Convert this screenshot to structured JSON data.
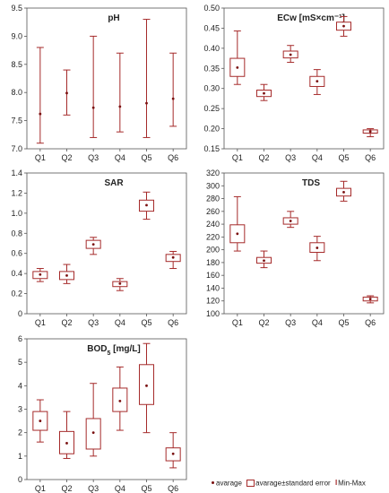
{
  "chart_data": [
    {
      "type": "box",
      "title": "pH",
      "categories": [
        "Q1",
        "Q2",
        "Q3",
        "Q4",
        "Q5",
        "Q6"
      ],
      "mean": [
        7.62,
        7.99,
        7.73,
        7.75,
        7.81,
        7.89
      ],
      "se_low": [
        7.62,
        7.99,
        7.73,
        7.75,
        7.81,
        7.89
      ],
      "se_high": [
        7.62,
        7.99,
        7.73,
        7.75,
        7.81,
        7.89
      ],
      "min": [
        7.1,
        7.6,
        7.2,
        7.3,
        7.2,
        7.4
      ],
      "max": [
        8.8,
        8.4,
        9.0,
        8.7,
        9.3,
        8.7
      ],
      "ylim": [
        7.0,
        9.5
      ],
      "yticks": [
        "7.0",
        "7.5",
        "8.0",
        "8.5",
        "9.0",
        "9.5"
      ]
    },
    {
      "type": "box",
      "title": "ECw [mS×cm⁻¹]",
      "categories": [
        "Q1",
        "Q2",
        "Q3",
        "Q4",
        "Q5",
        "Q6"
      ],
      "mean": [
        0.352,
        0.288,
        0.384,
        0.318,
        0.455,
        0.193
      ],
      "se_low": [
        0.33,
        0.28,
        0.376,
        0.305,
        0.445,
        0.189
      ],
      "se_high": [
        0.375,
        0.296,
        0.393,
        0.33,
        0.465,
        0.197
      ],
      "min": [
        0.31,
        0.27,
        0.365,
        0.285,
        0.43,
        0.18
      ],
      "max": [
        0.443,
        0.31,
        0.407,
        0.347,
        0.479,
        0.2
      ],
      "ylim": [
        0.15,
        0.5
      ],
      "yticks": [
        "0.15",
        "0.20",
        "0.25",
        "0.30",
        "0.35",
        "0.40",
        "0.45",
        "0.50"
      ]
    },
    {
      "type": "box",
      "title": "SAR",
      "categories": [
        "Q1",
        "Q2",
        "Q3",
        "Q4",
        "Q5",
        "Q6"
      ],
      "mean": [
        0.39,
        0.38,
        0.69,
        0.3,
        1.08,
        0.56
      ],
      "se_low": [
        0.35,
        0.34,
        0.65,
        0.27,
        1.02,
        0.52
      ],
      "se_high": [
        0.42,
        0.42,
        0.73,
        0.32,
        1.13,
        0.59
      ],
      "min": [
        0.32,
        0.3,
        0.59,
        0.23,
        0.94,
        0.45
      ],
      "max": [
        0.45,
        0.49,
        0.76,
        0.35,
        1.21,
        0.62
      ],
      "ylim": [
        0.0,
        1.4
      ],
      "yticks": [
        "0",
        "0.2",
        "0.4",
        "0.6",
        "0.8",
        "1.0",
        "1.2",
        "1.4"
      ]
    },
    {
      "type": "box",
      "title": "TDS",
      "categories": [
        "Q1",
        "Q2",
        "Q3",
        "Q4",
        "Q5",
        "Q6"
      ],
      "mean": [
        225,
        183,
        245,
        203,
        290,
        123
      ],
      "se_low": [
        211,
        179,
        240,
        196,
        284,
        120
      ],
      "se_high": [
        239,
        188,
        250,
        211,
        296,
        126
      ],
      "min": [
        198,
        172,
        235,
        183,
        276,
        117
      ],
      "max": [
        283,
        198,
        260,
        221,
        307,
        128
      ],
      "ylim": [
        100,
        320
      ],
      "yticks": [
        "100",
        "120",
        "140",
        "160",
        "180",
        "200",
        "220",
        "240",
        "260",
        "280",
        "300",
        "320"
      ]
    },
    {
      "type": "box",
      "title": "BOD5 [mg/L]",
      "title_parts": [
        "BOD",
        "5",
        " [mg/L]"
      ],
      "categories": [
        "Q1",
        "Q2",
        "Q3",
        "Q4",
        "Q5",
        "Q6"
      ],
      "mean": [
        2.5,
        1.55,
        2.0,
        3.35,
        4.0,
        1.1
      ],
      "se_low": [
        2.1,
        1.1,
        1.3,
        2.9,
        3.2,
        0.8
      ],
      "se_high": [
        2.9,
        2.05,
        2.6,
        3.9,
        4.9,
        1.35
      ],
      "min": [
        1.6,
        0.9,
        1.0,
        2.1,
        2.0,
        0.5
      ],
      "max": [
        3.4,
        2.9,
        4.1,
        4.8,
        5.8,
        2.0
      ],
      "ylim": [
        0,
        6
      ],
      "yticks": [
        "0",
        "1",
        "2",
        "3",
        "4",
        "5",
        "6"
      ]
    }
  ],
  "legend": {
    "mean_label": "avarage",
    "se_label": "avarage±standard error",
    "minmax_label": "Min-Max"
  },
  "colors": {
    "box": "#a52a2a",
    "mean": "#7a1010",
    "axis": "#555555",
    "text": "#222222"
  }
}
